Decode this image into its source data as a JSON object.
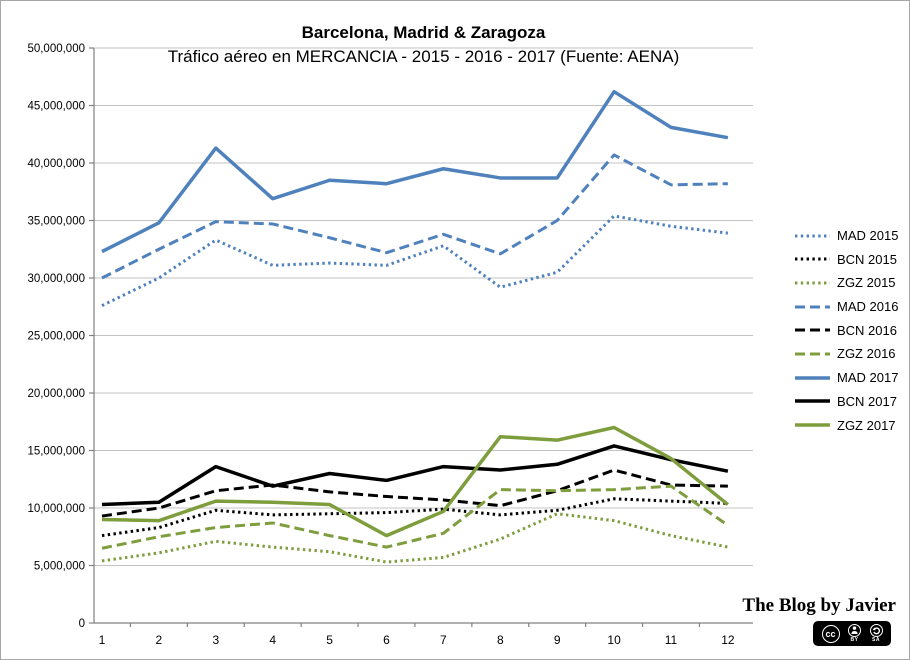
{
  "page": {
    "background": "#ffffff",
    "border_color": "#a6a6a6"
  },
  "chart_data": {
    "type": "line",
    "title": "Barcelona, Madrid & Zaragoza",
    "subtitle": "Tráfico aéreo en MERCANCIA - 2015 - 2016 - 2017 (Fuente: AENA)",
    "categories": [
      "1",
      "2",
      "3",
      "4",
      "5",
      "6",
      "7",
      "8",
      "9",
      "10",
      "11",
      "12"
    ],
    "y_axis": {
      "min": 0,
      "max": 50000000,
      "tick_step": 5000000,
      "tick_labels": [
        "0",
        "5,000,000",
        "10,000,000",
        "15,000,000",
        "20,000,000",
        "25,000,000",
        "30,000,000",
        "35,000,000",
        "40,000,000",
        "45,000,000",
        "50,000,000"
      ]
    },
    "grid": true,
    "legend_position": "right",
    "style": {
      "grid_color": "#c3c3c3",
      "axis_color": "#808080"
    },
    "series": [
      {
        "name": "MAD 2015",
        "color": "#4F81BD",
        "dash": "dotted",
        "values": [
          27600000,
          30000000,
          33300000,
          31100000,
          31300000,
          31100000,
          32800000,
          29200000,
          30500000,
          35400000,
          34500000,
          33900000
        ]
      },
      {
        "name": "BCN 2015",
        "color": "#000000",
        "dash": "dotted",
        "values": [
          7600000,
          8300000,
          9800000,
          9400000,
          9500000,
          9600000,
          9900000,
          9400000,
          9800000,
          10800000,
          10600000,
          10400000
        ]
      },
      {
        "name": "ZGZ 2015",
        "color": "#7E9D3D",
        "dash": "dotted",
        "values": [
          5400000,
          6100000,
          7100000,
          6600000,
          6200000,
          5300000,
          5700000,
          7300000,
          9500000,
          8900000,
          7600000,
          6600000
        ]
      },
      {
        "name": "MAD 2016",
        "color": "#4F81BD",
        "dash": "dashed",
        "values": [
          30000000,
          32500000,
          34900000,
          34700000,
          33500000,
          32200000,
          33800000,
          32100000,
          35000000,
          40700000,
          38100000,
          38200000
        ]
      },
      {
        "name": "BCN 2016",
        "color": "#000000",
        "dash": "dashed",
        "values": [
          9300000,
          10000000,
          11500000,
          12000000,
          11400000,
          11000000,
          10700000,
          10200000,
          11500000,
          13300000,
          12000000,
          11900000
        ]
      },
      {
        "name": "ZGZ 2016",
        "color": "#7E9D3D",
        "dash": "dashed",
        "values": [
          6500000,
          7500000,
          8300000,
          8700000,
          7600000,
          6600000,
          7800000,
          11600000,
          11500000,
          11600000,
          11900000,
          8500000
        ]
      },
      {
        "name": "MAD 2017",
        "color": "#4F81BD",
        "dash": "solid",
        "values": [
          32300000,
          34800000,
          41300000,
          36900000,
          38500000,
          38200000,
          39500000,
          38700000,
          38700000,
          46200000,
          43100000,
          42200000
        ]
      },
      {
        "name": "BCN 2017",
        "color": "#000000",
        "dash": "solid",
        "values": [
          10300000,
          10500000,
          13600000,
          11900000,
          13000000,
          12400000,
          13600000,
          13300000,
          13800000,
          15400000,
          14200000,
          13200000
        ]
      },
      {
        "name": "ZGZ 2017",
        "color": "#7E9D3D",
        "dash": "solid",
        "values": [
          9000000,
          8900000,
          10600000,
          10500000,
          10300000,
          7600000,
          9700000,
          16200000,
          15900000,
          17000000,
          14300000,
          10300000
        ]
      }
    ]
  },
  "branding": {
    "text": "The Blog by Javier",
    "license": {
      "cc": "cc",
      "by": "BY",
      "sa": "SA"
    }
  }
}
